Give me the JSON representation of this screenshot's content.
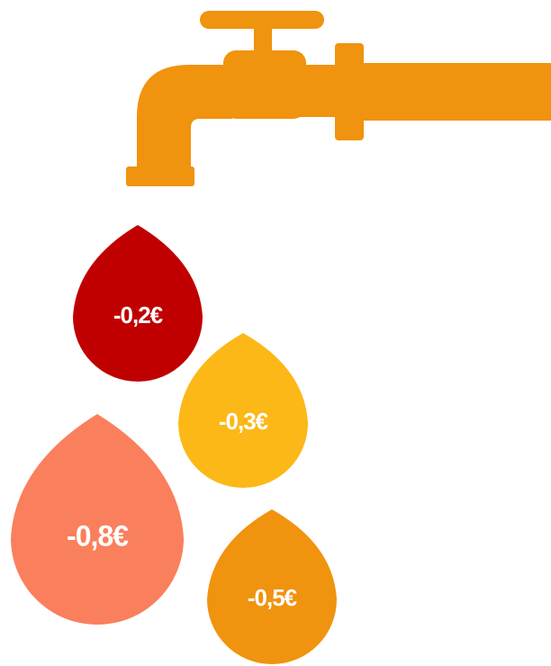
{
  "drops": [
    {
      "label": "-0,2€",
      "color": "#c00000"
    },
    {
      "label": "-0,3€",
      "color": "#fbb817"
    },
    {
      "label": "-0,8€",
      "color": "#fa7f5d"
    },
    {
      "label": "-0,5€",
      "color": "#f0930e"
    }
  ]
}
